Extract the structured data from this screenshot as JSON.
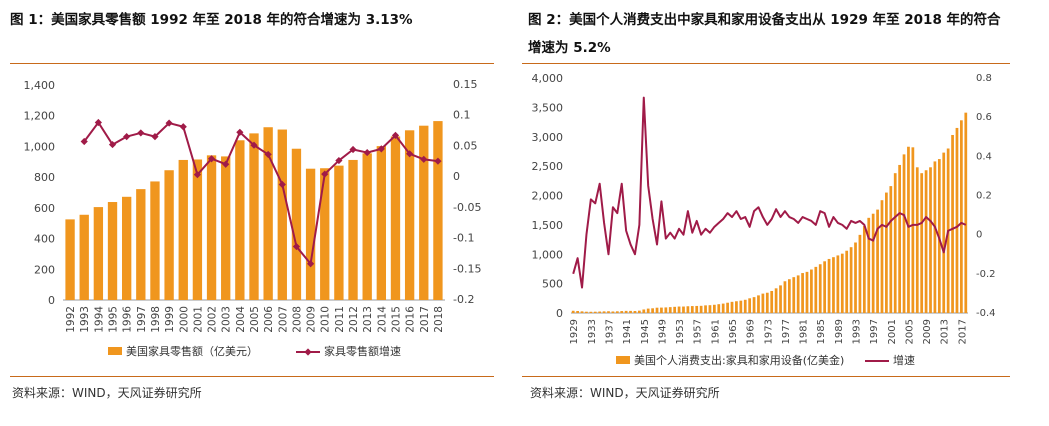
{
  "figures": [
    {
      "title": "图 1：美国家具零售额 1992 年至 2018 年的符合增速为 3.13%",
      "source": "资料来源：WIND，天风证券研究所"
    },
    {
      "title": "图 2：美国个人消费支出中家具和家用设备支出从 1929 年至 2018 年的符合增速为 5.2%",
      "source": "资料来源：WIND，天风证券研究所"
    }
  ],
  "colors": {
    "bar": "#f0961e",
    "line": "#a01b48",
    "rule": "#c86a1a",
    "axis": "#999999"
  },
  "chart_data": [
    {
      "type": "bar",
      "title": "图 1：美国家具零售额 1992 年至 2018 年的符合增速为 3.13%",
      "categories": [
        "1992",
        "1993",
        "1994",
        "1995",
        "1996",
        "1997",
        "1998",
        "1999",
        "2000",
        "2001",
        "2002",
        "2003",
        "2004",
        "2005",
        "2006",
        "2007",
        "2008",
        "2009",
        "2010",
        "2011",
        "2012",
        "2013",
        "2014",
        "2015",
        "2016",
        "2017",
        "2018"
      ],
      "series": [
        {
          "name": "美国家具零售额（亿美元）",
          "type": "bar",
          "axis": "left",
          "values": [
            525,
            555,
            605,
            638,
            672,
            722,
            772,
            845,
            912,
            915,
            942,
            935,
            1040,
            1085,
            1125,
            1110,
            985,
            855,
            858,
            875,
            912,
            955,
            1002,
            1065,
            1105,
            1135,
            1165
          ]
        },
        {
          "name": "家具零售额增速",
          "type": "line",
          "axis": "right",
          "marker": "diamond",
          "values": [
            null,
            0.058,
            0.089,
            0.053,
            0.066,
            0.072,
            0.066,
            0.088,
            0.082,
            0.004,
            0.03,
            0.021,
            0.073,
            0.052,
            0.037,
            -0.012,
            -0.113,
            -0.141,
            0.005,
            0.027,
            0.045,
            0.04,
            0.046,
            0.068,
            0.038,
            0.029,
            0.026
          ]
        }
      ],
      "y_left": {
        "lim": [
          0,
          1400
        ],
        "ticks": [
          "0",
          "200",
          "400",
          "600",
          "800",
          "1,000",
          "1,200",
          "1,400"
        ]
      },
      "y_right": {
        "lim": [
          -0.2,
          0.15
        ],
        "ticks": [
          "-0.2",
          "-0.15",
          "-0.1",
          "-0.05",
          "0",
          "0.05",
          "0.1",
          "0.15"
        ]
      },
      "grid": false,
      "legend": "bottom"
    },
    {
      "type": "bar",
      "title": "图 2：美国个人消费支出中家具和家用设备支出从 1929 年至 2018 年的符合增速为 5.2%",
      "x_start": 1929,
      "x_end": 2018,
      "x_tick_labels": [
        "1929",
        "1933",
        "1937",
        "1941",
        "1945",
        "1949",
        "1953",
        "1957",
        "1961",
        "1965",
        "1969",
        "1973",
        "1977",
        "1981",
        "1985",
        "1989",
        "1993",
        "1997",
        "2001",
        "2005",
        "2009",
        "2013",
        "2017"
      ],
      "series": [
        {
          "name": "美国个人消费支出:家具和家用设备(亿美金)",
          "type": "bar",
          "axis": "left",
          "values": [
            38,
            34,
            28,
            22,
            21,
            22,
            25,
            28,
            30,
            26,
            29,
            33,
            36,
            36,
            34,
            40,
            60,
            75,
            80,
            90,
            92,
            95,
            100,
            105,
            110,
            110,
            115,
            118,
            120,
            122,
            130,
            133,
            140,
            150,
            160,
            175,
            190,
            200,
            210,
            225,
            250,
            270,
            300,
            330,
            345,
            375,
            420,
            470,
            540,
            575,
            610,
            640,
            680,
            700,
            740,
            785,
            830,
            880,
            920,
            950,
            980,
            1010,
            1060,
            1120,
            1200,
            1330,
            1480,
            1620,
            1690,
            1760,
            1920,
            2050,
            2160,
            2380,
            2520,
            2700,
            2830,
            2820,
            2480,
            2380,
            2430,
            2480,
            2580,
            2620,
            2730,
            2800,
            3030,
            3150,
            3280,
            3410
          ]
        },
        {
          "name": "增速",
          "type": "line",
          "axis": "right",
          "values": [
            -0.2,
            -0.12,
            -0.27,
            0.0,
            0.18,
            0.16,
            0.26,
            0.06,
            -0.1,
            0.14,
            0.11,
            0.26,
            0.02,
            -0.05,
            -0.1,
            0.05,
            0.7,
            0.25,
            0.08,
            -0.05,
            0.17,
            -0.02,
            0.01,
            -0.02,
            0.03,
            0.0,
            0.12,
            0.01,
            0.07,
            0.0,
            0.03,
            0.01,
            0.04,
            0.06,
            0.08,
            0.11,
            0.09,
            0.12,
            0.08,
            0.09,
            0.04,
            0.12,
            0.14,
            0.09,
            0.05,
            0.08,
            0.13,
            0.09,
            0.12,
            0.09,
            0.08,
            0.06,
            0.09,
            0.08,
            0.07,
            0.05,
            0.12,
            0.11,
            0.04,
            0.09,
            0.06,
            0.05,
            0.03,
            0.07,
            0.06,
            0.07,
            0.05,
            -0.02,
            -0.03,
            0.03,
            0.05,
            0.04,
            0.07,
            0.09,
            0.11,
            0.1,
            0.04,
            0.05,
            0.05,
            0.06,
            0.09,
            0.07,
            0.04,
            -0.02,
            -0.09,
            0.02,
            0.03,
            0.04,
            0.06,
            0.05
          ]
        }
      ],
      "y_left": {
        "lim": [
          0,
          4000
        ],
        "ticks": [
          "0",
          "500",
          "1,000",
          "1,500",
          "2,000",
          "2,500",
          "3,000",
          "3,500",
          "4,000"
        ]
      },
      "y_right": {
        "lim": [
          -0.4,
          0.8
        ],
        "ticks": [
          "-0.4",
          "-0.2",
          "0",
          "0.2",
          "0.4",
          "0.6",
          "0.8"
        ]
      },
      "grid": false,
      "legend": "bottom"
    }
  ]
}
